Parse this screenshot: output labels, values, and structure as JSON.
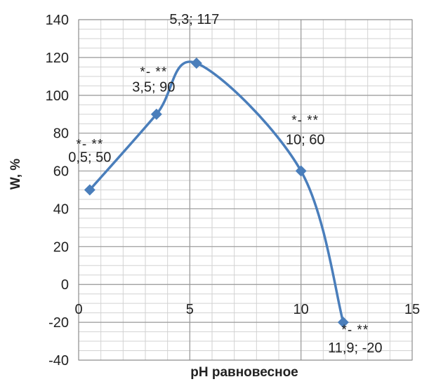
{
  "chart_data": {
    "type": "scatter",
    "xlabel": "pH равновесное",
    "ylabel": "W, %",
    "xlim": [
      0,
      15
    ],
    "ylim": [
      -40,
      140
    ],
    "x_ticks": [
      "0",
      "5",
      "10",
      "15"
    ],
    "y_ticks": [
      "140",
      "120",
      "100",
      "80",
      "60",
      "40",
      "20",
      "0",
      "-20",
      "-40"
    ],
    "grid": {
      "major": true,
      "minor": true
    },
    "smooth_line": true,
    "series": [
      {
        "color": "#4a7ebb",
        "marker": "diamond",
        "points": [
          {
            "x": 0.5,
            "y": 50,
            "label": "0,5; 50",
            "annotation": "*- **"
          },
          {
            "x": 3.5,
            "y": 90,
            "label": "3,5; 90",
            "annotation": "*- **"
          },
          {
            "x": 5.3,
            "y": 117,
            "label": "5,3; 117",
            "annotation": "*- **"
          },
          {
            "x": 10,
            "y": 60,
            "label": "10; 60",
            "annotation": "*- **"
          },
          {
            "x": 11.9,
            "y": -20,
            "label": "11,9; -20",
            "annotation": "*- **"
          }
        ]
      }
    ]
  }
}
